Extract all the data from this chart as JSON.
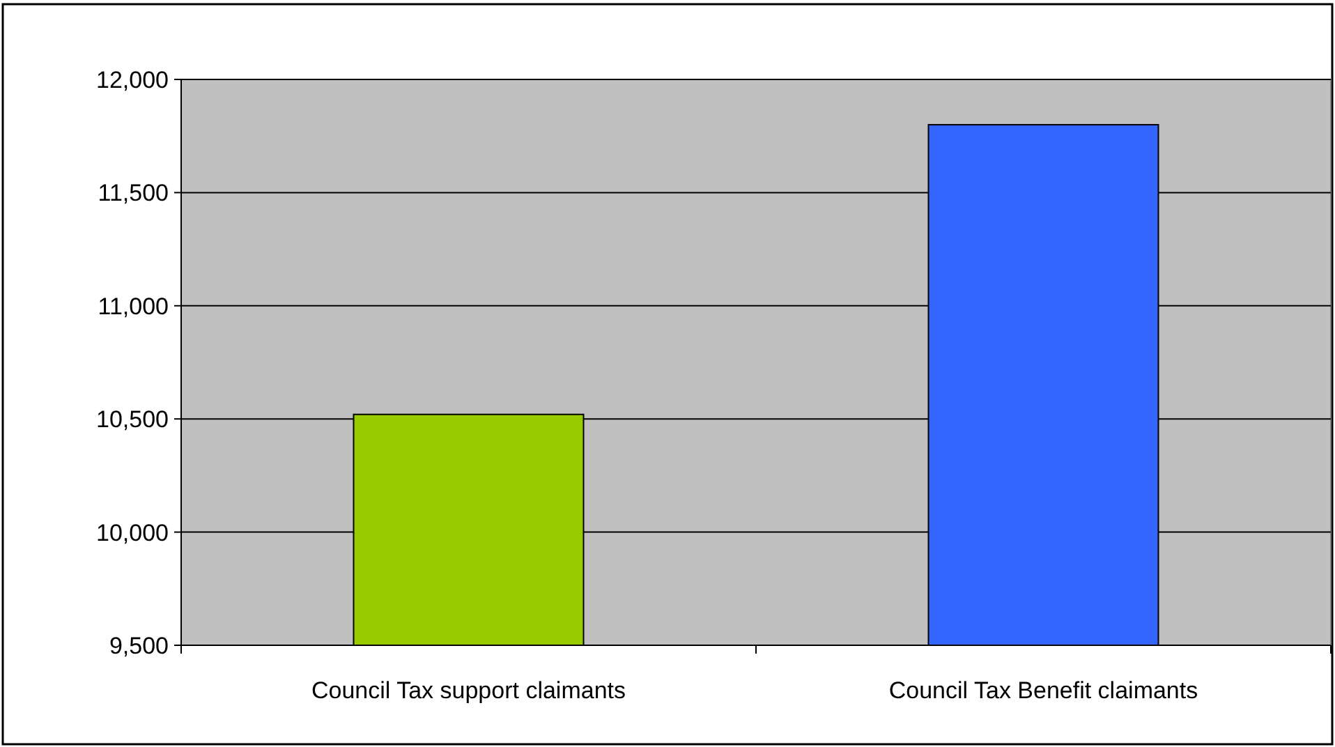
{
  "chart_data": {
    "type": "bar",
    "categories": [
      "Council Tax support claimants",
      "Council Tax Benefit claimants"
    ],
    "values": [
      10520,
      11800
    ],
    "colors": [
      "#99cc00",
      "#3366ff"
    ],
    "ylim": [
      9500,
      12000
    ],
    "yticks": [
      {
        "value": 9500,
        "label": "9,500"
      },
      {
        "value": 10000,
        "label": "10,000"
      },
      {
        "value": 10500,
        "label": "10,500"
      },
      {
        "value": 11000,
        "label": "11,000"
      },
      {
        "value": 11500,
        "label": "11,500"
      },
      {
        "value": 12000,
        "label": "12,000"
      }
    ],
    "grid": "y"
  }
}
